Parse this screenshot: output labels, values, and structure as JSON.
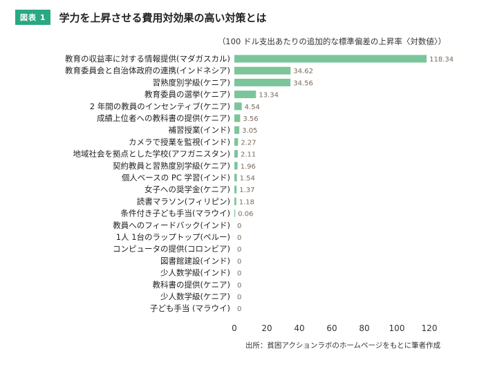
{
  "figure": {
    "badge": "図表 1",
    "title": "学力を上昇させる費用対効果の高い対策とは"
  },
  "chart_data": {
    "type": "bar",
    "orientation": "horizontal",
    "unit_label": "（100 ドル支出あたりの追加的な標準偏差の上昇率〈対数値〉）",
    "categories": [
      "教育の収益率に対する情報提供(マダガスカル)",
      "教育委員会と自治体政府の連携(インドネシア)",
      "習熟度別学級(ケニア)",
      "教育委員の選挙(ケニア)",
      "2 年間の教員のインセンティブ(ケニア)",
      "成績上位者への教科書の提供(ケニア)",
      "補習授業(インド)",
      "カメラで授業を監視(インド)",
      "地域社会を拠点とした学校(アフガニスタン)",
      "契約教員と習熟度別学級(ケニア)",
      "個人ベースの PC 学習(インド)",
      "女子への奨学金(ケニア)",
      "読書マラソン(フィリピン)",
      "条件付き子ども手当(マラウイ)",
      "教員へのフィードバック(インド)",
      "1人 1台のラップトップ(ペルー)",
      "コンピュータの提供(コロンビア)",
      "図書館建設(インド)",
      "少人数学級(インド)",
      "教科書の提供(ケニア)",
      "少人数学級(ケニア)",
      "子ども手当 (マラウイ)"
    ],
    "values": [
      118.34,
      34.62,
      34.56,
      13.34,
      4.54,
      3.56,
      3.05,
      2.27,
      2.11,
      1.96,
      1.54,
      1.37,
      1.18,
      0.06,
      0,
      0,
      0,
      0,
      0,
      0,
      0,
      0
    ],
    "value_labels": [
      "118.34",
      "34.62",
      "34.56",
      "13.34",
      "4.54",
      "3.56",
      "3.05",
      "2.27",
      "2.11",
      "1.96",
      "1.54",
      "1.37",
      "1.18",
      "0.06",
      "0",
      "0",
      "0",
      "0",
      "0",
      "0",
      "0",
      "0"
    ],
    "xlim": [
      0,
      120
    ],
    "xticks": [
      0,
      20,
      40,
      60,
      80,
      100,
      120
    ],
    "bar_color": "#7cc59a",
    "value_label_color": "#7a6a5a",
    "grid": false,
    "source": "出所：貧困アクションラボのホームページをもとに筆者作成"
  }
}
